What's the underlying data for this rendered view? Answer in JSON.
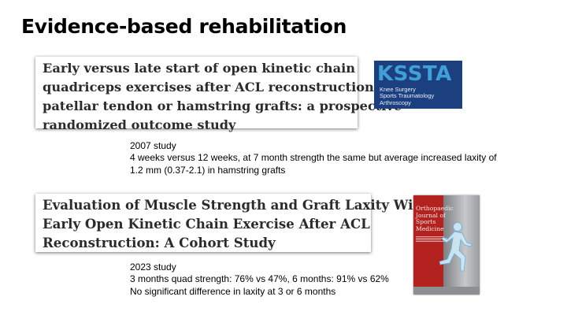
{
  "slide": {
    "title": "Evidence-based rehabilitation"
  },
  "studies": [
    {
      "paper_title_lines": [
        "Early versus late start of open kinetic chain",
        "quadriceps exercises after ACL reconstruction with",
        "patellar tendon or hamstring grafts: a prospective",
        "randomized outcome study"
      ],
      "journal": {
        "name": "KSSTA",
        "subtitle_lines": [
          "Knee Surgery",
          "Sports Traumatology",
          "Arthroscopy"
        ],
        "colors": {
          "background": "#1c3f7f",
          "name": "#3fa0d8"
        }
      },
      "notes": [
        "2007 study",
        "4 weeks versus 12 weeks, at 7 month strength the same but average increased laxity of",
        "1.2 mm (0.37-2.1) in hamstring grafts"
      ]
    },
    {
      "paper_title_lines": [
        "Evaluation of Muscle Strength and Graft Laxity With",
        "Early Open Kinetic Chain Exercise After ACL",
        "Reconstruction: A Cohort Study"
      ],
      "journal": {
        "title_lines": [
          "Orthopaedic",
          "Journal of",
          "Sports",
          "Medicine"
        ],
        "cover_icon": "running-athlete-figure",
        "colors": {
          "background": "#b3221f",
          "panel": "#9b9ca0"
        }
      },
      "notes": [
        "2023 study",
        "3 months quad strength: 76% vs 47%, 6 months: 91% vs 62%",
        "No significant difference in laxity at 3 or 6 months"
      ]
    }
  ]
}
